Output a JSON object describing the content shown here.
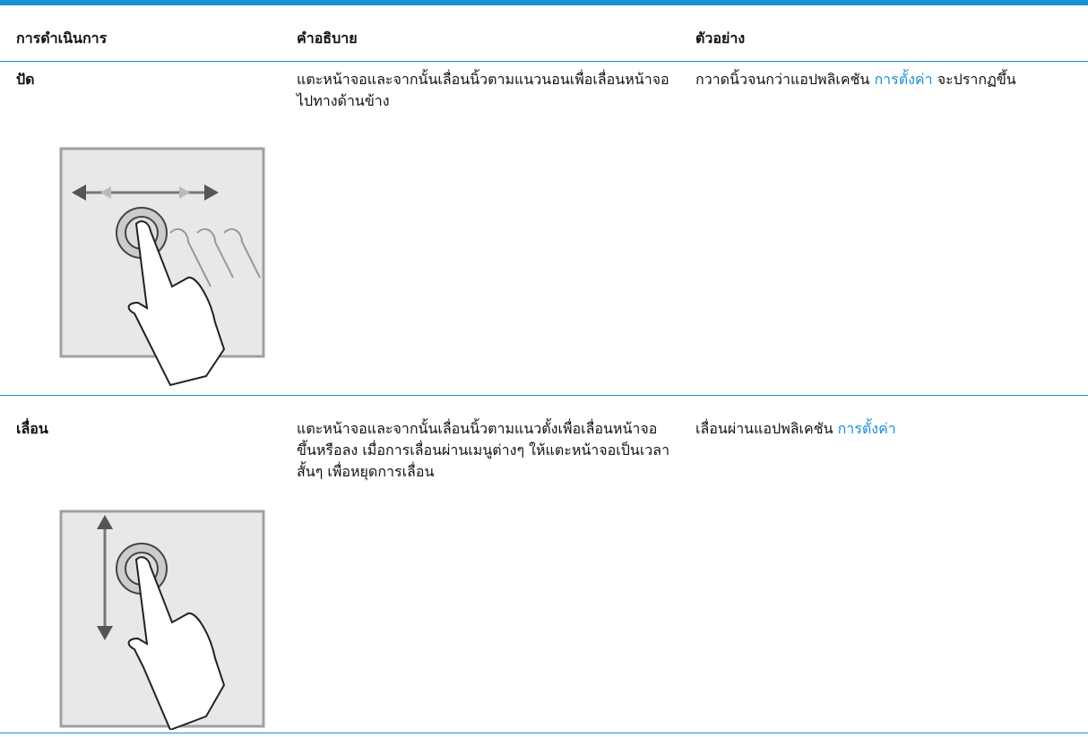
{
  "table": {
    "header": [
      "การดำเนินการ",
      "คำอธิบาย",
      "ตัวอย่าง"
    ],
    "rows": [
      {
        "action": "ปัด",
        "description": "แตะหน้าจอและจากนั้นเลื่อนนิ้วตามแนวนอนเพื่อเลื่อนหน้าจอไปทางด้านข้าง",
        "example": {
          "before": "กวาดนิ้วจนกว่าแอปพลิเคชัน",
          "link": "การตั้งค่า",
          "after": "จะปรากฏขึ้น"
        }
      },
      {
        "action": "เลื่อน",
        "description": "แตะหน้าจอและจากนั้นเลื่อนนิ้วตามแนวตั้งเพื่อเลื่อนหน้าจอขึ้นหรือลง เมื่อการเลื่อนผ่านเมนูต่างๆ ให้แตะหน้าจอเป็นเวลาสั้นๆ เพื่อหยุดการเลื่อน",
        "example": {
          "before": "เลื่อนผ่านแอปพลิเคชัน",
          "link": "การตั้งค่า"
        }
      }
    ]
  }
}
